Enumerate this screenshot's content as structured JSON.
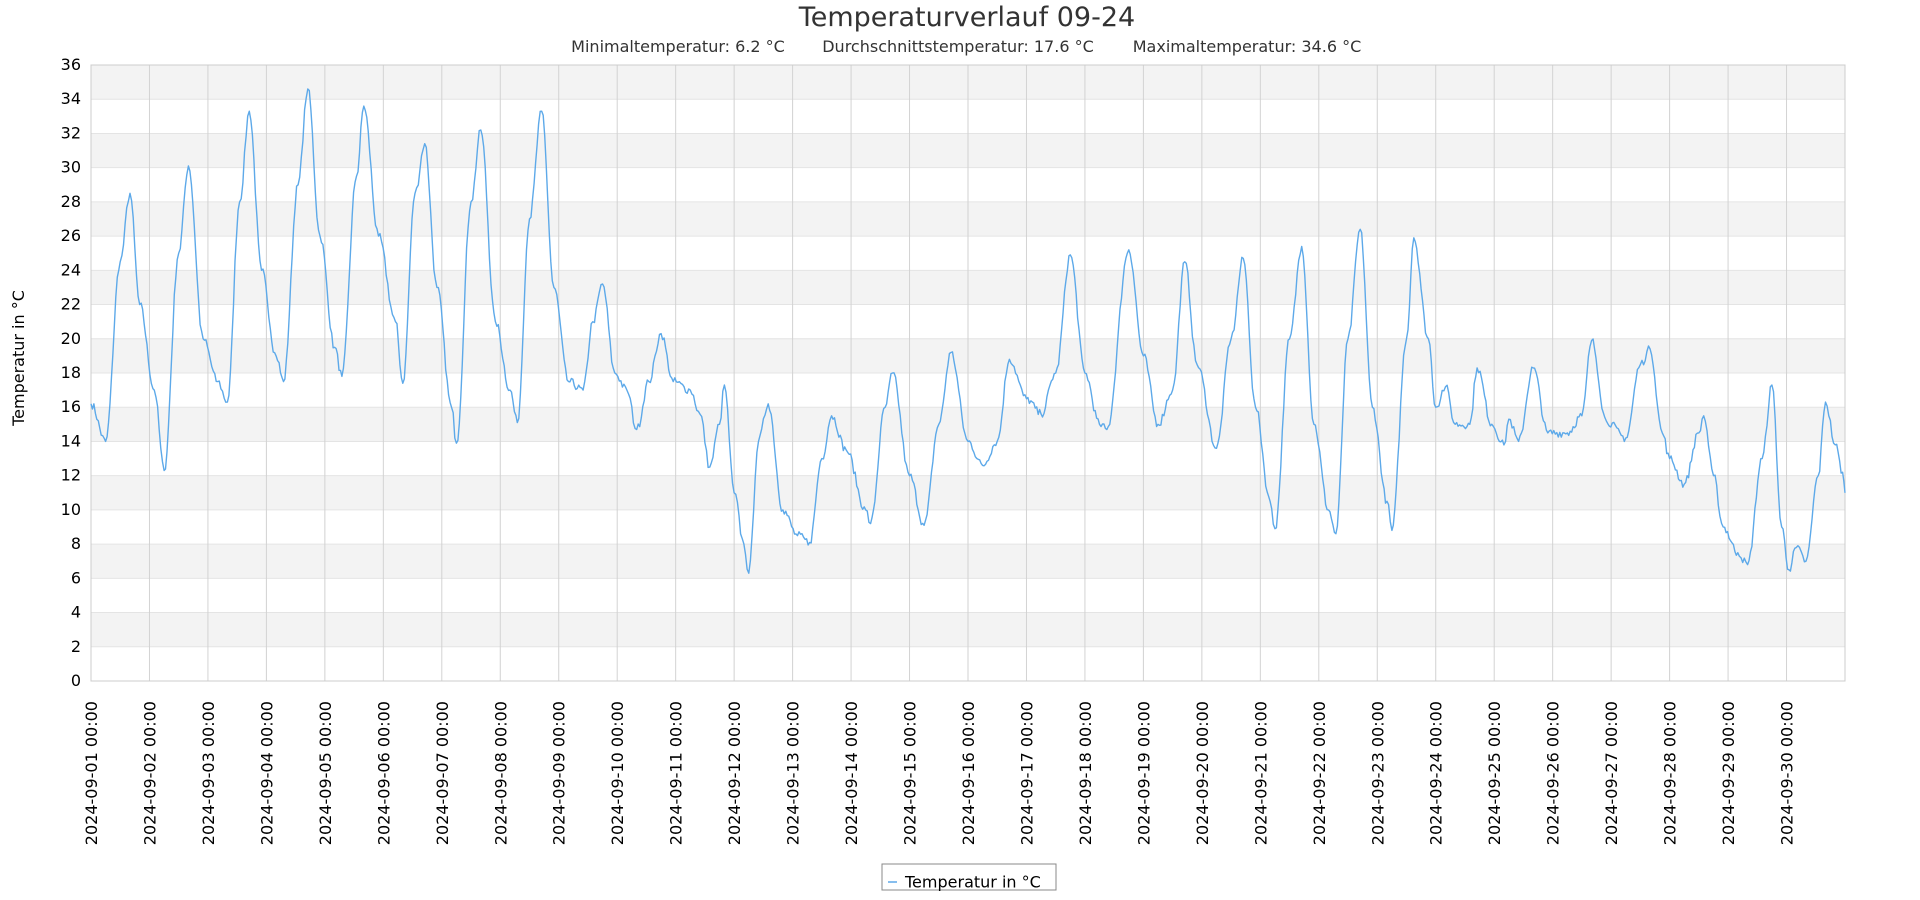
{
  "chart_data": {
    "type": "line",
    "title": "Temperaturverlauf 09-24",
    "stats": {
      "min_label": "Minimaltemperatur: 6.2 °C",
      "avg_label": "Durchschnittstemperatur: 17.6 °C",
      "max_label": "Maximaltemperatur: 34.6 °C"
    },
    "ylabel": "Temperatur in °C",
    "xlabel": "",
    "ylim": [
      0,
      36
    ],
    "y_ticks": [
      0,
      2,
      4,
      6,
      8,
      10,
      12,
      14,
      16,
      18,
      20,
      22,
      24,
      26,
      28,
      30,
      32,
      34,
      36
    ],
    "x_ticks": [
      "2024-09-01 00:00",
      "2024-09-02 00:00",
      "2024-09-03 00:00",
      "2024-09-04 00:00",
      "2024-09-05 00:00",
      "2024-09-06 00:00",
      "2024-09-07 00:00",
      "2024-09-08 00:00",
      "2024-09-09 00:00",
      "2024-09-10 00:00",
      "2024-09-11 00:00",
      "2024-09-12 00:00",
      "2024-09-13 00:00",
      "2024-09-14 00:00",
      "2024-09-15 00:00",
      "2024-09-16 00:00",
      "2024-09-17 00:00",
      "2024-09-18 00:00",
      "2024-09-19 00:00",
      "2024-09-20 00:00",
      "2024-09-21 00:00",
      "2024-09-22 00:00",
      "2024-09-23 00:00",
      "2024-09-24 00:00",
      "2024-09-25 00:00",
      "2024-09-26 00:00",
      "2024-09-27 00:00",
      "2024-09-28 00:00",
      "2024-09-29 00:00",
      "2024-09-30 00:00"
    ],
    "xlim": [
      "2024-09-01 00:00",
      "2024-10-01 00:00"
    ],
    "grid": true,
    "legend_position": "bottom-center",
    "series": [
      {
        "name": "Temperatur in °C",
        "color": "#5da9e9",
        "points": [
          [
            "2024-09-01 00:00",
            16.2
          ],
          [
            "2024-09-01 06:00",
            14.0
          ],
          [
            "2024-09-01 12:00",
            24.5
          ],
          [
            "2024-09-01 16:00",
            28.5
          ],
          [
            "2024-09-01 20:00",
            22.0
          ],
          [
            "2024-09-02 02:00",
            17.0
          ],
          [
            "2024-09-02 06:00",
            12.3
          ],
          [
            "2024-09-02 12:00",
            25.0
          ],
          [
            "2024-09-02 16:00",
            30.1
          ],
          [
            "2024-09-02 22:00",
            20.0
          ],
          [
            "2024-09-03 04:00",
            17.5
          ],
          [
            "2024-09-03 08:00",
            16.3
          ],
          [
            "2024-09-03 13:00",
            28.0
          ],
          [
            "2024-09-03 17:00",
            33.3
          ],
          [
            "2024-09-03 22:00",
            24.0
          ],
          [
            "2024-09-04 04:00",
            19.0
          ],
          [
            "2024-09-04 07:00",
            17.5
          ],
          [
            "2024-09-04 13:00",
            29.0
          ],
          [
            "2024-09-04 17:00",
            34.6
          ],
          [
            "2024-09-04 22:00",
            26.0
          ],
          [
            "2024-09-05 04:00",
            19.5
          ],
          [
            "2024-09-05 07:00",
            17.8
          ],
          [
            "2024-09-05 13:00",
            29.5
          ],
          [
            "2024-09-05 16:00",
            33.6
          ],
          [
            "2024-09-05 22:00",
            26.0
          ],
          [
            "2024-09-06 05:00",
            21.0
          ],
          [
            "2024-09-06 08:00",
            17.4
          ],
          [
            "2024-09-06 13:00",
            28.5
          ],
          [
            "2024-09-06 17:00",
            31.4
          ],
          [
            "2024-09-06 22:00",
            23.0
          ],
          [
            "2024-09-07 04:00",
            16.0
          ],
          [
            "2024-09-07 06:00",
            13.9
          ],
          [
            "2024-09-07 12:00",
            28.0
          ],
          [
            "2024-09-07 16:00",
            32.2
          ],
          [
            "2024-09-07 22:00",
            21.0
          ],
          [
            "2024-09-08 04:00",
            17.0
          ],
          [
            "2024-09-08 07:00",
            15.1
          ],
          [
            "2024-09-08 12:00",
            27.0
          ],
          [
            "2024-09-08 17:00",
            33.3
          ],
          [
            "2024-09-08 22:00",
            23.0
          ],
          [
            "2024-09-09 04:00",
            17.5
          ],
          [
            "2024-09-09 10:00",
            17.0
          ],
          [
            "2024-09-09 14:00",
            21.0
          ],
          [
            "2024-09-09 18:00",
            23.2
          ],
          [
            "2024-09-09 23:00",
            18.0
          ],
          [
            "2024-09-10 04:00",
            17.0
          ],
          [
            "2024-09-10 08:00",
            14.7
          ],
          [
            "2024-09-10 13:00",
            17.5
          ],
          [
            "2024-09-10 18:00",
            20.3
          ],
          [
            "2024-09-10 23:00",
            17.5
          ],
          [
            "2024-09-11 06:00",
            17.0
          ],
          [
            "2024-09-11 10:00",
            15.6
          ],
          [
            "2024-09-11 14:00",
            12.5
          ],
          [
            "2024-09-11 18:00",
            15.0
          ],
          [
            "2024-09-11 20:00",
            17.3
          ],
          [
            "2024-09-12 00:00",
            11.0
          ],
          [
            "2024-09-12 04:00",
            8.0
          ],
          [
            "2024-09-12 06:00",
            6.3
          ],
          [
            "2024-09-12 10:00",
            14.0
          ],
          [
            "2024-09-12 14:00",
            16.2
          ],
          [
            "2024-09-12 20:00",
            10.0
          ],
          [
            "2024-09-13 02:00",
            8.5
          ],
          [
            "2024-09-13 07:00",
            8.1
          ],
          [
            "2024-09-13 12:00",
            13.0
          ],
          [
            "2024-09-13 16:00",
            15.5
          ],
          [
            "2024-09-13 22:00",
            13.5
          ],
          [
            "2024-09-14 06:00",
            10.0
          ],
          [
            "2024-09-14 08:00",
            9.2
          ],
          [
            "2024-09-14 14:00",
            16.0
          ],
          [
            "2024-09-14 17:00",
            18.0
          ],
          [
            "2024-09-15 00:00",
            12.0
          ],
          [
            "2024-09-15 06:00",
            9.1
          ],
          [
            "2024-09-15 12:00",
            15.0
          ],
          [
            "2024-09-15 17:00",
            19.2
          ],
          [
            "2024-09-16 00:00",
            14.0
          ],
          [
            "2024-09-16 06:00",
            12.6
          ],
          [
            "2024-09-16 12:00",
            14.0
          ],
          [
            "2024-09-16 17:00",
            18.8
          ],
          [
            "2024-09-17 00:00",
            16.5
          ],
          [
            "2024-09-17 06:00",
            15.6
          ],
          [
            "2024-09-17 12:00",
            18.0
          ],
          [
            "2024-09-17 18:00",
            24.9
          ],
          [
            "2024-09-18 00:00",
            18.0
          ],
          [
            "2024-09-18 06:00",
            15.0
          ],
          [
            "2024-09-18 09:00",
            14.7
          ],
          [
            "2024-09-18 18:00",
            25.2
          ],
          [
            "2024-09-19 00:00",
            19.0
          ],
          [
            "2024-09-19 06:00",
            15.0
          ],
          [
            "2024-09-19 12:00",
            17.0
          ],
          [
            "2024-09-19 17:00",
            24.5
          ],
          [
            "2024-09-19 22:00",
            18.5
          ],
          [
            "2024-09-20 06:00",
            13.6
          ],
          [
            "2024-09-20 12:00",
            20.0
          ],
          [
            "2024-09-20 17:00",
            24.7
          ],
          [
            "2024-09-20 22:00",
            16.0
          ],
          [
            "2024-09-21 04:00",
            10.5
          ],
          [
            "2024-09-21 06:00",
            8.9
          ],
          [
            "2024-09-21 12:00",
            20.0
          ],
          [
            "2024-09-21 17:00",
            25.4
          ],
          [
            "2024-09-21 22:00",
            15.0
          ],
          [
            "2024-09-22 04:00",
            10.0
          ],
          [
            "2024-09-22 07:00",
            8.6
          ],
          [
            "2024-09-22 12:00",
            20.0
          ],
          [
            "2024-09-22 17:00",
            26.4
          ],
          [
            "2024-09-22 22:00",
            16.0
          ],
          [
            "2024-09-23 04:00",
            10.5
          ],
          [
            "2024-09-23 06:00",
            8.8
          ],
          [
            "2024-09-23 12:00",
            20.0
          ],
          [
            "2024-09-23 15:00",
            25.9
          ],
          [
            "2024-09-23 21:00",
            20.0
          ],
          [
            "2024-09-24 00:00",
            16.0
          ],
          [
            "2024-09-24 04:00",
            17.2
          ],
          [
            "2024-09-24 08:00",
            15.0
          ],
          [
            "2024-09-24 14:00",
            15.0
          ],
          [
            "2024-09-24 17:00",
            18.3
          ],
          [
            "2024-09-24 23:00",
            15.0
          ],
          [
            "2024-09-25 04:00",
            13.8
          ],
          [
            "2024-09-25 06:00",
            15.3
          ],
          [
            "2024-09-25 10:00",
            14.0
          ],
          [
            "2024-09-25 16:00",
            18.3
          ],
          [
            "2024-09-25 22:00",
            14.5
          ],
          [
            "2024-09-26 06:00",
            14.5
          ],
          [
            "2024-09-26 12:00",
            15.5
          ],
          [
            "2024-09-26 16:00",
            19.9
          ],
          [
            "2024-09-26 22:00",
            15.2
          ],
          [
            "2024-09-27 06:00",
            14.2
          ],
          [
            "2024-09-27 12:00",
            18.5
          ],
          [
            "2024-09-27 16:00",
            19.4
          ],
          [
            "2024-09-27 21:00",
            14.5
          ],
          [
            "2024-09-28 00:00",
            13.0
          ],
          [
            "2024-09-28 06:00",
            11.5
          ],
          [
            "2024-09-28 12:00",
            14.5
          ],
          [
            "2024-09-28 14:00",
            15.5
          ],
          [
            "2024-09-28 18:00",
            12.0
          ],
          [
            "2024-09-28 22:00",
            9.0
          ],
          [
            "2024-09-29 04:00",
            7.5
          ],
          [
            "2024-09-29 08:00",
            6.8
          ],
          [
            "2024-09-29 14:00",
            13.0
          ],
          [
            "2024-09-29 18:00",
            17.3
          ],
          [
            "2024-09-29 22:00",
            9.0
          ],
          [
            "2024-09-30 01:00",
            6.5
          ],
          [
            "2024-09-30 04:00",
            7.8
          ],
          [
            "2024-09-30 08:00",
            7.0
          ],
          [
            "2024-09-30 13:00",
            12.0
          ],
          [
            "2024-09-30 16:00",
            16.3
          ],
          [
            "2024-09-30 20:00",
            13.8
          ],
          [
            "2024-09-30 23:00",
            12.2
          ],
          [
            "2024-10-01 00:00",
            11.0
          ]
        ]
      }
    ]
  }
}
